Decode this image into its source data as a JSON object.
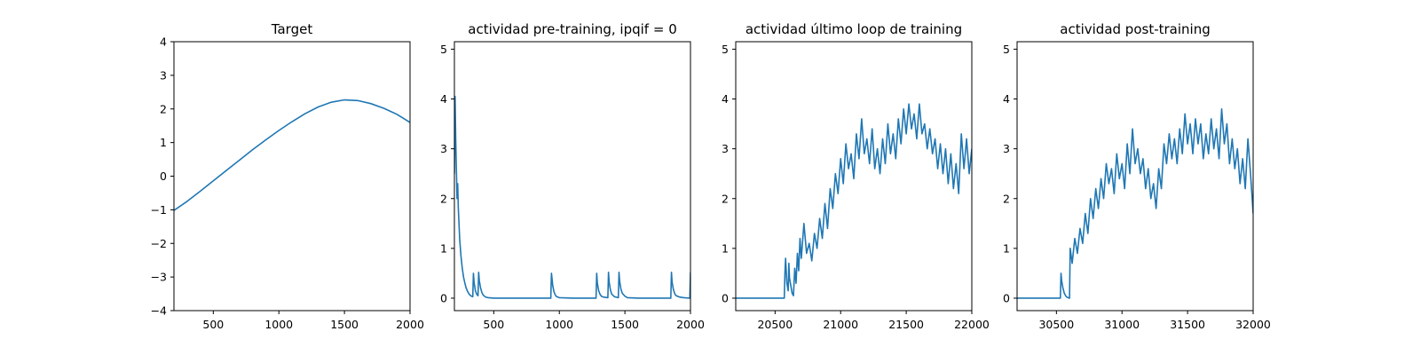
{
  "chart_data": [
    {
      "type": "line",
      "title": "Target",
      "xlim": [
        200,
        2000
      ],
      "ylim": [
        -4,
        4
      ],
      "xticks": [
        500,
        1000,
        1500,
        2000
      ],
      "yticks": [
        -4,
        -3,
        -2,
        -1,
        0,
        1,
        2,
        3,
        4
      ],
      "series": [
        {
          "color": "#1f77b4",
          "x": [
            200,
            300,
            400,
            500,
            600,
            700,
            800,
            900,
            1000,
            1100,
            1200,
            1300,
            1400,
            1500,
            1600,
            1700,
            1800,
            1900,
            2000
          ],
          "y": [
            -1.02,
            -0.75,
            -0.45,
            -0.14,
            0.17,
            0.48,
            0.79,
            1.08,
            1.36,
            1.62,
            1.86,
            2.06,
            2.2,
            2.27,
            2.25,
            2.16,
            2.02,
            1.84,
            1.6
          ]
        }
      ]
    },
    {
      "type": "line",
      "title": "actividad pre-training, ipqif = 0",
      "xlim": [
        200,
        2000
      ],
      "ylim": [
        -0.25,
        5.15
      ],
      "xticks": [
        500,
        1000,
        1500,
        2000
      ],
      "yticks": [
        0,
        1,
        2,
        3,
        4,
        5
      ],
      "series": [
        {
          "color": "#1f77b4",
          "x": [
            200,
            205,
            210,
            215,
            220,
            225,
            230,
            240,
            250,
            260,
            270,
            280,
            290,
            300,
            310,
            320,
            330,
            340,
            345,
            350,
            360,
            370,
            380,
            385,
            390,
            400,
            410,
            420,
            440,
            460,
            500,
            600,
            700,
            800,
            900,
            935,
            940,
            950,
            960,
            970,
            980,
            1000,
            1100,
            1200,
            1280,
            1285,
            1290,
            1300,
            1310,
            1320,
            1340,
            1370,
            1375,
            1380,
            1390,
            1400,
            1420,
            1450,
            1455,
            1460,
            1470,
            1480,
            1500,
            1520,
            1600,
            1700,
            1800,
            1850,
            1855,
            1860,
            1870,
            1880,
            1890,
            1920,
            1950,
            1995,
            2000
          ],
          "y": [
            2.5,
            4.05,
            3.2,
            2.6,
            2.0,
            2.3,
            1.8,
            1.2,
            0.85,
            0.6,
            0.42,
            0.3,
            0.2,
            0.14,
            0.09,
            0.06,
            0.04,
            0.03,
            0.5,
            0.32,
            0.15,
            0.08,
            0.05,
            0.52,
            0.35,
            0.2,
            0.11,
            0.06,
            0.02,
            0.01,
            0.0,
            0.0,
            0.0,
            0.0,
            0.0,
            0.0,
            0.5,
            0.25,
            0.12,
            0.06,
            0.03,
            0.01,
            0.0,
            0.0,
            0.0,
            0.5,
            0.3,
            0.15,
            0.08,
            0.04,
            0.02,
            0.01,
            0.52,
            0.32,
            0.16,
            0.08,
            0.03,
            0.01,
            0.52,
            0.34,
            0.18,
            0.1,
            0.04,
            0.01,
            0.0,
            0.0,
            0.0,
            0.0,
            0.52,
            0.32,
            0.17,
            0.09,
            0.05,
            0.02,
            0.01,
            0.0,
            0.52
          ]
        }
      ]
    },
    {
      "type": "line",
      "title": "actividad último loop de training",
      "xlim": [
        20200,
        22000
      ],
      "ylim": [
        -0.25,
        5.15
      ],
      "xticks": [
        20500,
        21000,
        21500,
        22000
      ],
      "yticks": [
        0,
        1,
        2,
        3,
        4,
        5
      ],
      "series": [
        {
          "color": "#1f77b4",
          "x": [
            20200,
            20300,
            20400,
            20500,
            20570,
            20575,
            20580,
            20590,
            20600,
            20605,
            20610,
            20620,
            20630,
            20640,
            20650,
            20660,
            20670,
            20680,
            20690,
            20700,
            20720,
            20740,
            20760,
            20780,
            20800,
            20820,
            20840,
            20860,
            20880,
            20900,
            20920,
            20940,
            20960,
            20980,
            21000,
            21020,
            21040,
            21060,
            21080,
            21100,
            21120,
            21140,
            21160,
            21180,
            21200,
            21220,
            21240,
            21260,
            21280,
            21300,
            21320,
            21340,
            21360,
            21380,
            21400,
            21420,
            21440,
            21460,
            21480,
            21500,
            21520,
            21540,
            21560,
            21580,
            21600,
            21620,
            21640,
            21660,
            21680,
            21700,
            21720,
            21740,
            21760,
            21780,
            21800,
            21820,
            21840,
            21860,
            21880,
            21900,
            21920,
            21940,
            21960,
            21980,
            22000
          ],
          "y": [
            0.0,
            0.0,
            0.0,
            0.0,
            0.0,
            0.5,
            0.8,
            0.3,
            0.15,
            0.7,
            0.4,
            0.25,
            0.1,
            0.05,
            0.6,
            0.3,
            0.9,
            0.55,
            1.2,
            0.8,
            1.5,
            0.9,
            1.1,
            0.75,
            1.3,
            1.0,
            1.6,
            1.2,
            1.9,
            1.4,
            2.2,
            1.8,
            2.5,
            2.1,
            2.8,
            2.3,
            3.1,
            2.6,
            2.9,
            2.4,
            3.3,
            2.8,
            3.6,
            2.9,
            3.2,
            2.7,
            3.4,
            2.6,
            3.0,
            2.5,
            3.2,
            2.7,
            3.5,
            2.9,
            3.3,
            2.8,
            3.6,
            3.1,
            3.8,
            3.3,
            3.9,
            3.4,
            3.7,
            3.2,
            3.9,
            3.3,
            3.5,
            3.0,
            3.4,
            2.9,
            3.2,
            2.6,
            3.1,
            2.5,
            3.0,
            2.3,
            2.9,
            2.2,
            2.7,
            2.1,
            3.3,
            2.6,
            3.2,
            2.5,
            3.0
          ]
        }
      ]
    },
    {
      "type": "line",
      "title": "actividad post-training",
      "xlim": [
        30200,
        32000
      ],
      "ylim": [
        -0.25,
        5.15
      ],
      "xticks": [
        30500,
        31000,
        31500,
        32000
      ],
      "yticks": [
        0,
        1,
        2,
        3,
        4,
        5
      ],
      "series": [
        {
          "color": "#1f77b4",
          "x": [
            30200,
            30300,
            30400,
            30500,
            30530,
            30535,
            30540,
            30550,
            30560,
            30570,
            30580,
            30600,
            30605,
            30620,
            30640,
            30660,
            30680,
            30700,
            30720,
            30740,
            30760,
            30780,
            30800,
            30820,
            30840,
            30860,
            30880,
            30900,
            30920,
            30940,
            30960,
            30980,
            31000,
            31020,
            31040,
            31060,
            31080,
            31100,
            31120,
            31140,
            31160,
            31180,
            31200,
            31220,
            31240,
            31260,
            31280,
            31300,
            31320,
            31340,
            31360,
            31380,
            31400,
            31420,
            31440,
            31460,
            31480,
            31500,
            31520,
            31540,
            31560,
            31580,
            31600,
            31620,
            31640,
            31660,
            31680,
            31700,
            31720,
            31740,
            31760,
            31780,
            31800,
            31820,
            31840,
            31860,
            31880,
            31900,
            31920,
            31940,
            31960,
            31980,
            32000
          ],
          "y": [
            0.0,
            0.0,
            0.0,
            0.0,
            0.0,
            0.5,
            0.35,
            0.2,
            0.1,
            0.05,
            0.02,
            0.0,
            1.0,
            0.7,
            1.2,
            0.9,
            1.4,
            1.1,
            1.7,
            1.3,
            2.0,
            1.6,
            2.2,
            1.8,
            2.4,
            2.0,
            2.7,
            2.3,
            2.6,
            2.1,
            2.9,
            2.4,
            2.7,
            2.2,
            3.1,
            2.5,
            3.4,
            2.7,
            3.0,
            2.5,
            2.8,
            2.2,
            2.6,
            2.0,
            2.3,
            1.8,
            2.6,
            2.2,
            3.1,
            2.7,
            3.3,
            2.8,
            3.2,
            2.7,
            3.4,
            2.9,
            3.7,
            3.1,
            3.5,
            2.9,
            3.6,
            3.1,
            3.5,
            2.8,
            3.3,
            2.9,
            3.6,
            3.0,
            3.4,
            2.8,
            3.8,
            3.1,
            3.5,
            2.7,
            3.2,
            2.6,
            3.0,
            2.3,
            2.8,
            2.2,
            3.2,
            2.5,
            1.7
          ]
        }
      ]
    }
  ]
}
